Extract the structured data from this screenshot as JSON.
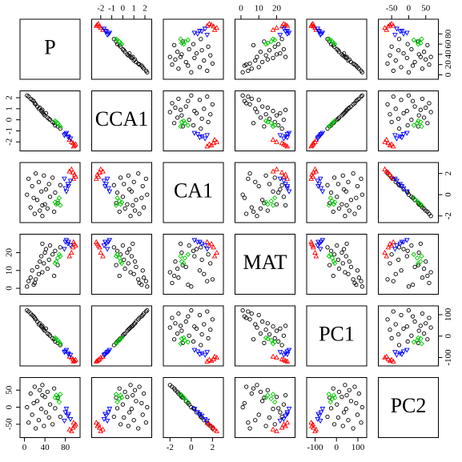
{
  "chart_data": {
    "type": "scatter-matrix",
    "variables": [
      "P",
      "CCA1",
      "CA1",
      "MAT",
      "PC1",
      "PC2"
    ],
    "axes": [
      {
        "lim": [
          -4,
          104
        ],
        "xticks": [
          0,
          40,
          80
        ],
        "yticks": [
          0,
          20,
          40,
          60,
          80
        ]
      },
      {
        "lim": [
          -2.6,
          2.4
        ],
        "xticks": [
          -2,
          -1,
          0,
          1,
          2
        ],
        "yticks": [
          -2,
          -1,
          0,
          1,
          2
        ]
      },
      {
        "lim": [
          -2.4,
          2.8
        ],
        "xticks": [
          -2,
          0,
          2
        ],
        "yticks": [
          -2,
          0,
          2
        ]
      },
      {
        "lim": [
          -2,
          29
        ],
        "xticks": [
          0,
          10,
          20
        ],
        "yticks": [
          0,
          10,
          20
        ]
      },
      {
        "lim": [
          -128,
          130
        ],
        "xticks": [
          -100,
          0,
          100
        ],
        "yticks": [
          -100,
          0,
          100
        ]
      },
      {
        "lim": [
          -82,
          80
        ],
        "xticks": [
          -50,
          0,
          50
        ],
        "yticks": [
          -50,
          0,
          50
        ]
      }
    ],
    "series": [
      {
        "color": "#000000",
        "marker": "circle",
        "values": [
          [
            8,
            2.1,
            1.5,
            4,
            115,
            -45
          ],
          [
            12,
            1.9,
            -1.2,
            6,
            105,
            40
          ],
          [
            15,
            1.8,
            0.8,
            10,
            98,
            -22
          ],
          [
            20,
            1.5,
            -1.8,
            3,
            85,
            60
          ],
          [
            22,
            1.4,
            2.0,
            5,
            78,
            -62
          ],
          [
            25,
            1.2,
            -0.5,
            12,
            68,
            18
          ],
          [
            28,
            1.0,
            1.2,
            8,
            55,
            -38
          ],
          [
            30,
            1.1,
            -1.5,
            15,
            60,
            50
          ],
          [
            33,
            0.8,
            0.3,
            18,
            45,
            -5
          ],
          [
            35,
            0.7,
            -2.0,
            9,
            40,
            65
          ],
          [
            38,
            0.5,
            1.8,
            14,
            30,
            -55
          ],
          [
            40,
            0.4,
            -0.9,
            20,
            25,
            30
          ],
          [
            42,
            0.6,
            0.5,
            22,
            35,
            -15
          ],
          [
            45,
            0.2,
            -1.3,
            11,
            12,
            45
          ],
          [
            48,
            0.1,
            1.0,
            16,
            8,
            -30
          ],
          [
            50,
            0.0,
            -0.2,
            24,
            2,
            8
          ],
          [
            55,
            -0.2,
            1.6,
            19,
            -10,
            -50
          ],
          [
            58,
            -0.3,
            -1.6,
            7,
            -15,
            55
          ],
          [
            60,
            -0.5,
            0.2,
            21,
            -25,
            -3
          ],
          [
            65,
            -0.6,
            -0.8,
            13,
            -32,
            28
          ],
          [
            18,
            1.7,
            -0.3,
            2,
            92,
            12
          ],
          [
            5,
            2.2,
            0.0,
            1,
            120,
            0
          ],
          [
            70,
            -0.8,
            0.9,
            23,
            -42,
            -28
          ],
          [
            35,
            0.9,
            -1.0,
            25,
            48,
            35
          ]
        ]
      },
      {
        "color": "#ff0000",
        "marker": "triangle-up",
        "values": [
          [
            95,
            -2.1,
            2.1,
            23,
            -108,
            -60
          ],
          [
            98,
            -2.3,
            1.9,
            25,
            -115,
            -55
          ],
          [
            92,
            -2.0,
            2.4,
            20,
            -100,
            -70
          ],
          [
            100,
            -2.2,
            1.7,
            24,
            -110,
            -50
          ],
          [
            88,
            -1.8,
            2.2,
            18,
            -95,
            -65
          ],
          [
            96,
            -2.4,
            1.5,
            26,
            -118,
            -45
          ]
        ]
      },
      {
        "color": "#0000ff",
        "marker": "triangle-down",
        "values": [
          [
            85,
            -1.5,
            1.0,
            25,
            -80,
            -25
          ],
          [
            80,
            -1.3,
            0.6,
            26,
            -72,
            -15
          ],
          [
            90,
            -1.7,
            1.3,
            24,
            -88,
            -35
          ],
          [
            82,
            -1.2,
            0.3,
            27,
            -65,
            -5
          ],
          [
            78,
            -1.4,
            1.5,
            22,
            -75,
            -40
          ],
          [
            86,
            -1.6,
            0.8,
            26,
            -85,
            -20
          ]
        ]
      },
      {
        "color": "#00cd00",
        "marker": "diamond",
        "values": [
          [
            65,
            -0.3,
            -0.6,
            17,
            -20,
            25
          ],
          [
            62,
            -0.2,
            -0.9,
            15,
            -12,
            35
          ],
          [
            68,
            -0.5,
            -0.3,
            19,
            -28,
            15
          ],
          [
            60,
            -0.1,
            -0.7,
            14,
            -8,
            28
          ],
          [
            70,
            -0.6,
            -1.0,
            18,
            -35,
            38
          ]
        ]
      }
    ]
  }
}
